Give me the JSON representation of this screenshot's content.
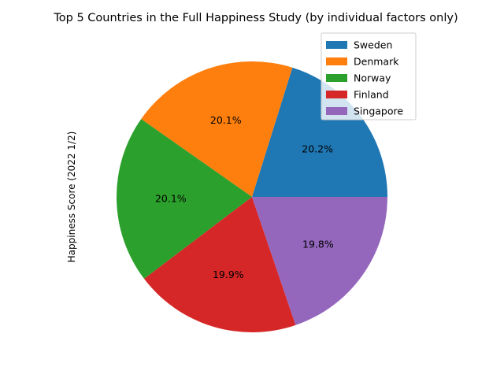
{
  "chart_data": {
    "type": "pie",
    "title": "Top 5 Countries in the Full Happiness Study (by individual factors only)",
    "ylabel": "Happiness Score (2022 1/2)",
    "xlabel": "",
    "categories": [
      "Sweden",
      "Denmark",
      "Norway",
      "Finland",
      "Singapore"
    ],
    "percentages": [
      20.2,
      20.1,
      20.1,
      19.9,
      19.8
    ],
    "percentage_labels": [
      "20.2%",
      "20.1%",
      "20.1%",
      "19.9%",
      "19.8%"
    ],
    "colors": [
      "#1f77b4",
      "#ff7f0e",
      "#2ca02c",
      "#d62728",
      "#9467bd"
    ],
    "start_angle_deg": 0,
    "direction": "counterclockwise",
    "legend": {
      "placement": "upper-right",
      "entries": [
        "Sweden",
        "Denmark",
        "Norway",
        "Finland",
        "Singapore"
      ]
    }
  }
}
